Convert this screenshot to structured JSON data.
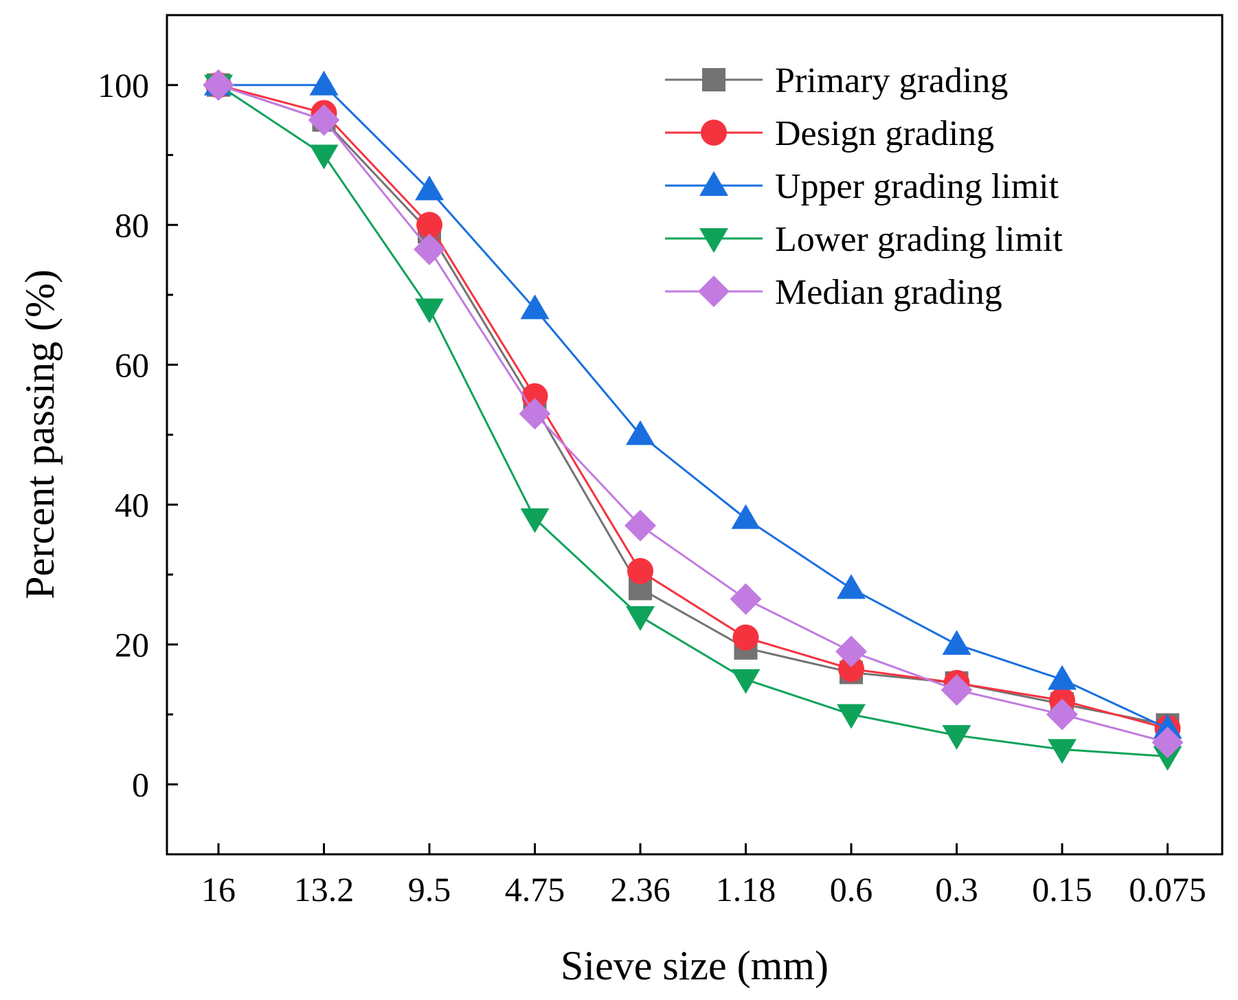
{
  "chart_data": {
    "type": "line",
    "title": "",
    "xlabel": "Sieve size (mm)",
    "ylabel": "Percent passing (%)",
    "categories": [
      "16",
      "13.2",
      "9.5",
      "4.75",
      "2.36",
      "1.18",
      "0.6",
      "0.3",
      "0.15",
      "0.075"
    ],
    "ylim": [
      -10,
      110
    ],
    "yticks": [
      0,
      20,
      40,
      60,
      80,
      100
    ],
    "grid": false,
    "legend_position": "top-right",
    "series": [
      {
        "name": "Primary grading",
        "color": "#737373",
        "marker": "square",
        "values": [
          100,
          95,
          79,
          54,
          28,
          19.5,
          16,
          14.5,
          11.5,
          8.5
        ]
      },
      {
        "name": "Design grading",
        "color": "#f5333f",
        "marker": "circle",
        "values": [
          100,
          96,
          80,
          55.5,
          30.5,
          21,
          16.5,
          14.5,
          12,
          8
        ]
      },
      {
        "name": "Upper grading limit",
        "color": "#1a6fdf",
        "marker": "triangle-up",
        "values": [
          100,
          100,
          85,
          68,
          50,
          38,
          28,
          20,
          15,
          8
        ]
      },
      {
        "name": "Lower grading limit",
        "color": "#0fa35a",
        "marker": "triangle-down",
        "values": [
          100,
          90,
          68,
          38,
          24,
          15,
          10,
          7,
          5,
          4
        ]
      },
      {
        "name": "Median grading",
        "color": "#c27be0",
        "marker": "diamond",
        "values": [
          100,
          95,
          76.5,
          53,
          37,
          26.5,
          19,
          13.5,
          10,
          6
        ]
      }
    ]
  }
}
